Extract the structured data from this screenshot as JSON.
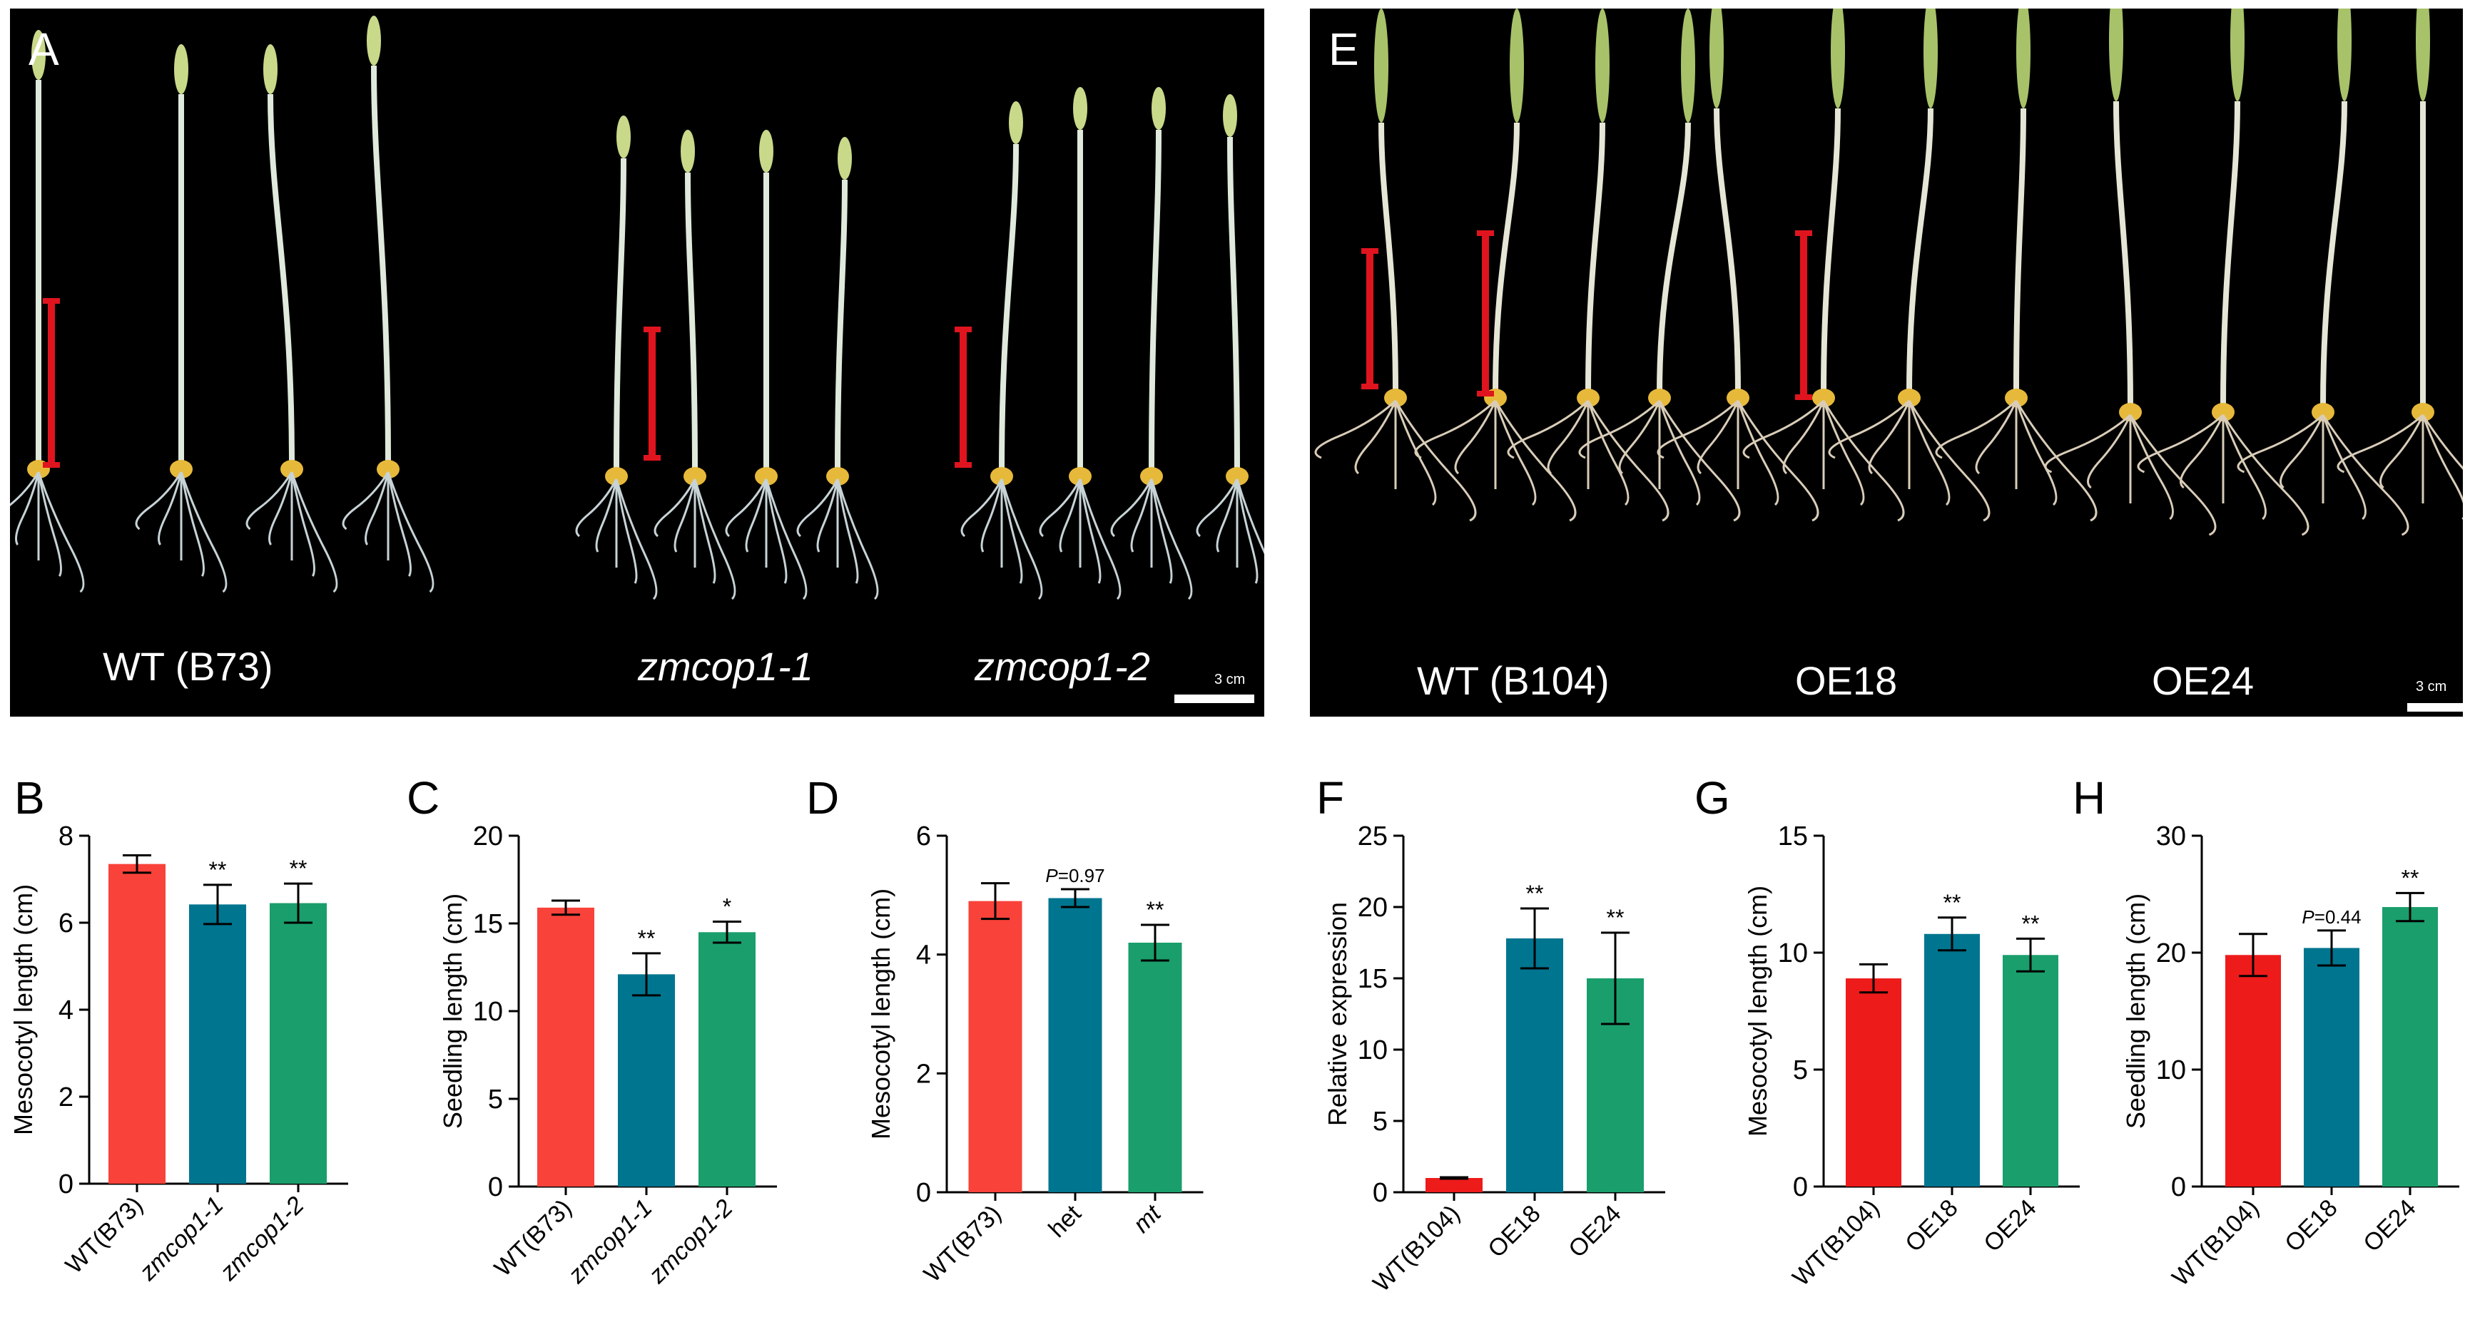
{
  "figure": {
    "panels": {
      "A": {
        "letter": "A",
        "labels": [
          "WT (B73)",
          "zmcop1-1",
          "zmcop1-2"
        ],
        "scale": "3 cm"
      },
      "E": {
        "letter": "E",
        "labels": [
          "WT (B104)",
          "OE18",
          "OE24"
        ],
        "scale": "3 cm"
      }
    },
    "colors": {
      "red_bar": "#f9423a",
      "red_bar_strong": "#ee1b1b",
      "teal_bar": "#00758f",
      "green_bar": "#1a9e6c",
      "scale_marker": "#e0141e"
    }
  },
  "chart_data": [
    {
      "panel": "B",
      "type": "bar",
      "categories": [
        "WT(B73)",
        "zmcop1-1",
        "zmcop1-2"
      ],
      "italic_categories": [
        false,
        true,
        true
      ],
      "values": [
        7.35,
        6.42,
        6.45
      ],
      "errors": [
        0.2,
        0.45,
        0.45
      ],
      "significance": [
        "",
        "**",
        "**"
      ],
      "ylabel": "Mesocotyl length (cm)",
      "ylim": [
        0,
        8
      ],
      "yticks": [
        "0",
        "2",
        "4",
        "6",
        "8"
      ],
      "colors": [
        "#f9423a",
        "#00758f",
        "#1a9e6c"
      ]
    },
    {
      "panel": "C",
      "type": "bar",
      "categories": [
        "WT(B73)",
        "zmcop1-1",
        "zmcop1-2"
      ],
      "italic_categories": [
        false,
        true,
        true
      ],
      "values": [
        15.9,
        12.1,
        14.5
      ],
      "errors": [
        0.4,
        1.2,
        0.6
      ],
      "significance": [
        "",
        "**",
        "*"
      ],
      "ylabel": "Seedling length (cm)",
      "ylim": [
        0,
        20
      ],
      "yticks": [
        "0",
        "5",
        "10",
        "15",
        "20"
      ],
      "colors": [
        "#f9423a",
        "#00758f",
        "#1a9e6c"
      ]
    },
    {
      "panel": "D",
      "type": "bar",
      "categories": [
        "WT(B73)",
        "het",
        "mt"
      ],
      "italic_categories": [
        false,
        false,
        true
      ],
      "values": [
        4.9,
        4.95,
        4.2
      ],
      "errors": [
        0.3,
        0.15,
        0.3
      ],
      "significance": [
        "",
        "P=0.97",
        "**"
      ],
      "ylabel": "Mesocotyl length (cm)",
      "ylim": [
        0,
        6
      ],
      "yticks": [
        "0",
        "2",
        "4",
        "6"
      ],
      "colors": [
        "#f9423a",
        "#00758f",
        "#1a9e6c"
      ]
    },
    {
      "panel": "F",
      "type": "bar",
      "categories": [
        "WT(B104)",
        "OE18",
        "OE24"
      ],
      "italic_categories": [
        false,
        false,
        false
      ],
      "values": [
        1.0,
        17.8,
        15.0
      ],
      "errors": [
        0.05,
        2.1,
        3.2
      ],
      "significance": [
        "",
        "**",
        "**"
      ],
      "ylabel": "Relative expression",
      "ylim": [
        0,
        25
      ],
      "yticks": [
        "0",
        "5",
        "10",
        "15",
        "20",
        "25"
      ],
      "colors": [
        "#ee1b1b",
        "#00758f",
        "#1a9e6c"
      ]
    },
    {
      "panel": "G",
      "type": "bar",
      "categories": [
        "WT(B104)",
        "OE18",
        "OE24"
      ],
      "italic_categories": [
        false,
        false,
        false
      ],
      "values": [
        8.9,
        10.8,
        9.9
      ],
      "errors": [
        0.6,
        0.7,
        0.7
      ],
      "significance": [
        "",
        "**",
        "**"
      ],
      "ylabel": "Mesocotyl length (cm)",
      "ylim": [
        0,
        15
      ],
      "yticks": [
        "0",
        "5",
        "10",
        "15"
      ],
      "colors": [
        "#ee1b1b",
        "#00758f",
        "#1a9e6c"
      ]
    },
    {
      "panel": "H",
      "type": "bar",
      "categories": [
        "WT(B104)",
        "OE18",
        "OE24"
      ],
      "italic_categories": [
        false,
        false,
        false
      ],
      "values": [
        19.8,
        20.4,
        23.9
      ],
      "errors": [
        1.8,
        1.5,
        1.2
      ],
      "significance": [
        "",
        "P=0.44",
        "**"
      ],
      "ylabel": "Seedling length (cm)",
      "ylim": [
        0,
        30
      ],
      "yticks": [
        "0",
        "10",
        "20",
        "30"
      ],
      "colors": [
        "#ee1b1b",
        "#00758f",
        "#1a9e6c"
      ]
    }
  ]
}
